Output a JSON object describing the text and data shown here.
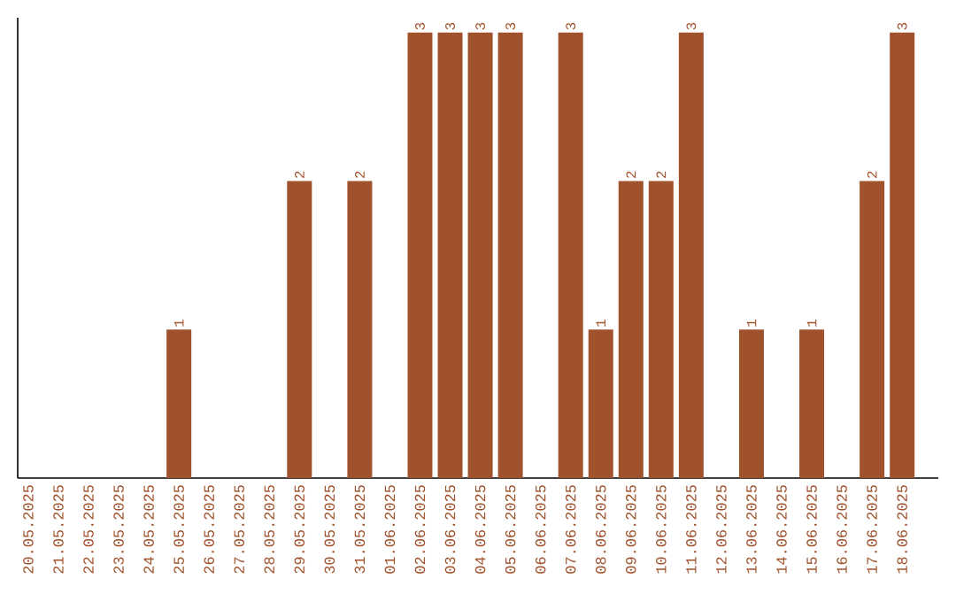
{
  "chart_data": {
    "type": "bar",
    "categories": [
      "20.05.2025",
      "21.05.2025",
      "22.05.2025",
      "23.05.2025",
      "24.05.2025",
      "25.05.2025",
      "26.05.2025",
      "27.05.2025",
      "28.05.2025",
      "29.05.2025",
      "30.05.2025",
      "31.05.2025",
      "01.06.2025",
      "02.06.2025",
      "03.06.2025",
      "04.06.2025",
      "05.06.2025",
      "06.06.2025",
      "07.06.2025",
      "08.06.2025",
      "09.06.2025",
      "10.06.2025",
      "11.06.2025",
      "12.06.2025",
      "13.06.2025",
      "14.06.2025",
      "15.06.2025",
      "16.06.2025",
      "17.06.2025",
      "18.06.2025"
    ],
    "values": [
      0,
      0,
      0,
      0,
      0,
      1,
      0,
      0,
      0,
      2,
      0,
      2,
      0,
      3,
      3,
      3,
      3,
      0,
      3,
      1,
      2,
      2,
      3,
      0,
      1,
      0,
      1,
      0,
      2,
      3
    ],
    "value_labels": [
      null,
      null,
      null,
      null,
      null,
      "1",
      null,
      null,
      null,
      "2",
      null,
      "2",
      null,
      "3",
      "3",
      "3",
      "3",
      null,
      "3",
      "1",
      "2",
      "2",
      "3",
      null,
      "1",
      null,
      "1",
      null,
      "2",
      "3"
    ],
    "color": "#a0522d",
    "ylim": [
      0,
      3.1
    ],
    "tick_labels": "x"
  }
}
